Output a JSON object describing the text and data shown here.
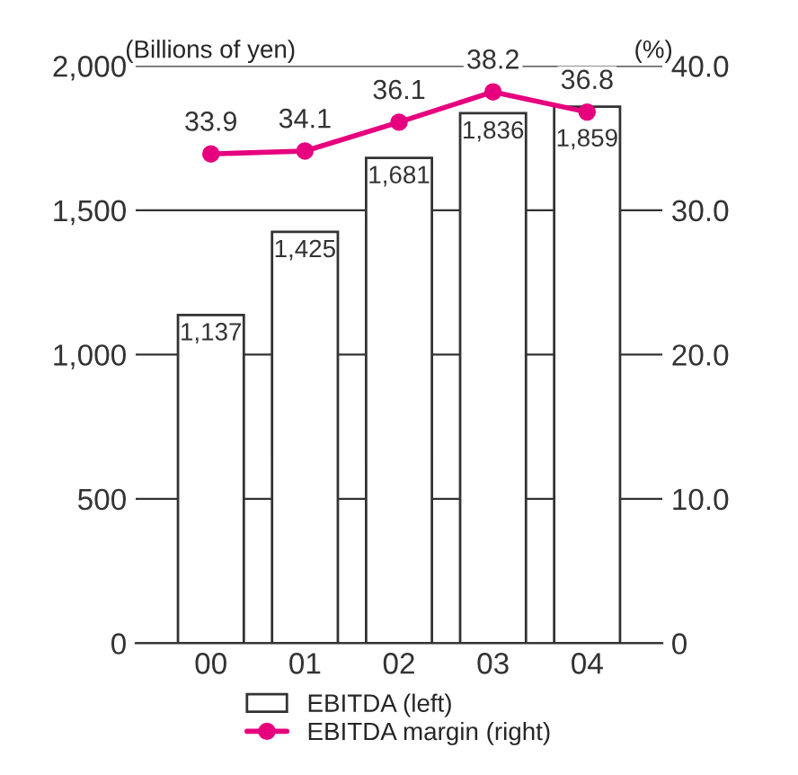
{
  "chart_data": {
    "type": "bar",
    "categories": [
      "00",
      "01",
      "02",
      "03",
      "04"
    ],
    "ylabel": "(Billions of yen)",
    "y2label": "(%)",
    "ylim": [
      0,
      2000
    ],
    "yticks": [
      0,
      500,
      {
        "value": 1000,
        "label": "1,000"
      },
      {
        "value": 1500,
        "label": "1,500"
      },
      {
        "value": 2000,
        "label": "2,000"
      }
    ],
    "y2lim": [
      0,
      40
    ],
    "y2ticks": [
      0,
      {
        "value": 10,
        "label": "10.0"
      },
      {
        "value": 20,
        "label": "20.0"
      },
      {
        "value": 30,
        "label": "30.0"
      },
      {
        "value": 40,
        "label": "40.0"
      }
    ],
    "grid": "y",
    "legend": "bottom",
    "series": [
      {
        "name": "EBITDA (left)",
        "color": "#ffffff",
        "values": [
          1137,
          1425,
          1681,
          1836,
          1859
        ],
        "value_labels": [
          "1,137",
          "1,425",
          "1,681",
          "1,836",
          "1,859"
        ]
      },
      {
        "name": "EBITDA margin (right)",
        "type": "line",
        "axis": "y2",
        "color": "#e6007e",
        "marker": "circle",
        "line_style": "solid",
        "values": [
          33.9,
          34.1,
          36.1,
          38.2,
          36.8
        ],
        "value_labels": [
          "33.9",
          "34.1",
          "36.1",
          "38.2",
          "36.8"
        ]
      }
    ]
  }
}
